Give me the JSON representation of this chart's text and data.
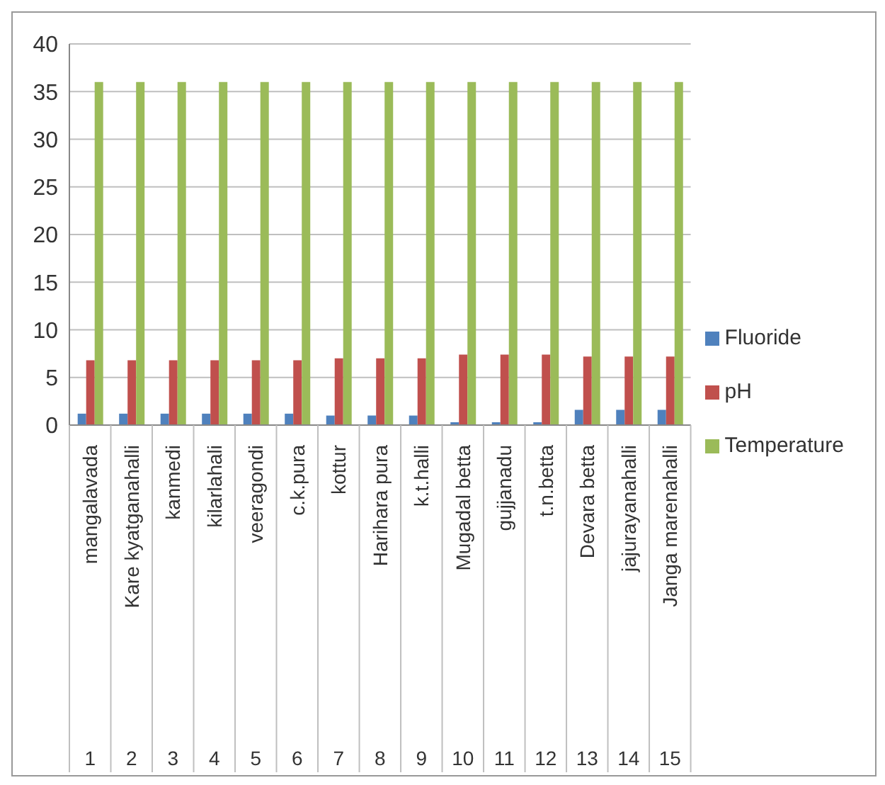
{
  "chart_data": {
    "type": "bar",
    "categories": [
      "mangalavada",
      "Kare kyatganahalli",
      "kanmedi",
      "kilarlahali",
      "veeragondi",
      "c.k.pura",
      "kottur",
      "Harihara pura",
      "k.t.halli",
      "Mugadal betta",
      "gujjanadu",
      "t.n.betta",
      "Devara betta",
      "jajurayanahalli",
      "Janga marenahalli"
    ],
    "series": [
      {
        "name": "Fluoride",
        "color": "#4f81bd",
        "values": [
          1.2,
          1.2,
          1.2,
          1.2,
          1.2,
          1.2,
          1.0,
          1.0,
          1.0,
          0.3,
          0.3,
          0.3,
          1.6,
          1.6,
          1.6
        ]
      },
      {
        "name": "pH",
        "color": "#c0504d",
        "values": [
          6.8,
          6.8,
          6.8,
          6.8,
          6.8,
          6.8,
          7.0,
          7.0,
          7.0,
          7.4,
          7.4,
          7.4,
          7.2,
          7.2,
          7.2
        ]
      },
      {
        "name": "Temperature",
        "color": "#9bbb59",
        "values": [
          36,
          36,
          36,
          36,
          36,
          36,
          36,
          36,
          36,
          36,
          36,
          36,
          36,
          36,
          36
        ]
      }
    ],
    "annotations": [
      "1",
      "2",
      "3",
      "4",
      "5",
      "6",
      "7",
      "8",
      "9",
      "10",
      "11",
      "12",
      "13",
      "14",
      "15"
    ],
    "ylim": [
      0,
      40
    ],
    "yticks": [
      0,
      5,
      10,
      15,
      20,
      25,
      30,
      35,
      40
    ],
    "grid": "y",
    "legend": "right"
  }
}
